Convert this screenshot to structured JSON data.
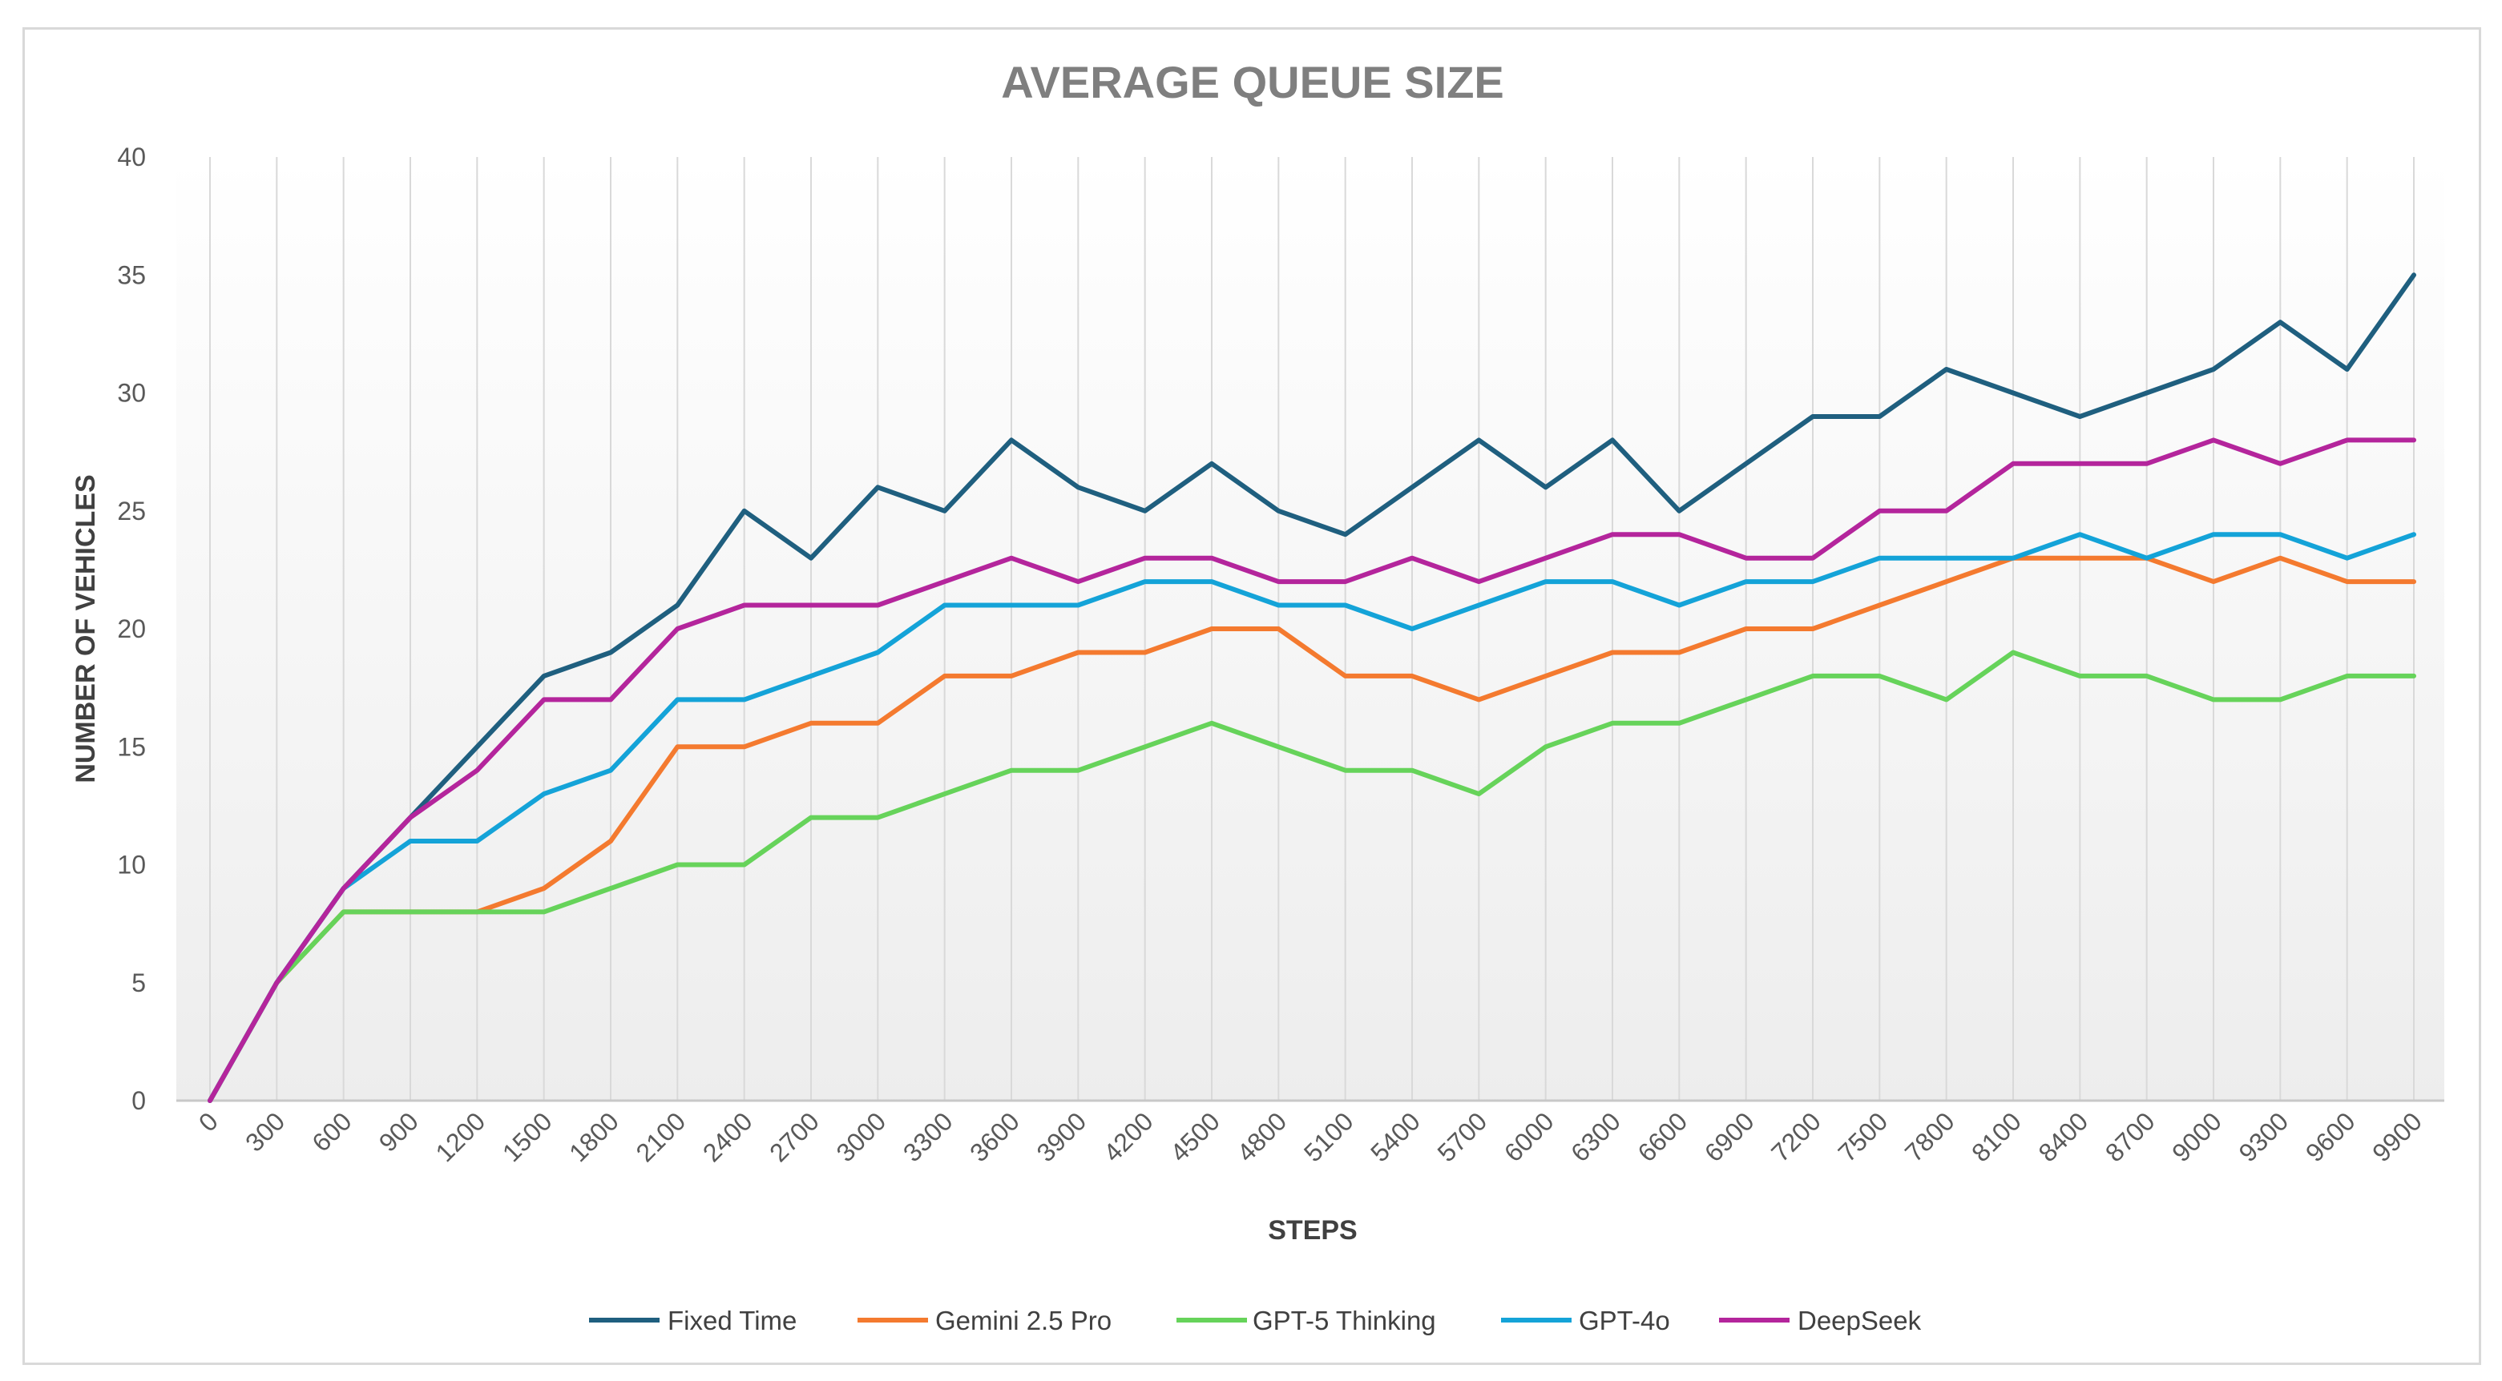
{
  "chart_data": {
    "type": "line",
    "title": "AVERAGE QUEUE SIZE",
    "xlabel": "STEPS",
    "ylabel": "NUMBER OF VEHICLES",
    "ylim": [
      0,
      40
    ],
    "yticks": [
      0,
      5,
      10,
      15,
      20,
      25,
      30,
      35,
      40
    ],
    "grid": "vertical",
    "legend": "bottom",
    "categories": [
      "0",
      "300",
      "600",
      "900",
      "1200",
      "1500",
      "1800",
      "2100",
      "2400",
      "2700",
      "3000",
      "3300",
      "3600",
      "3900",
      "4200",
      "4500",
      "4800",
      "5100",
      "5400",
      "5700",
      "6000",
      "6300",
      "6600",
      "6900",
      "7200",
      "7500",
      "7800",
      "8100",
      "8400",
      "8700",
      "9000",
      "9300",
      "9600",
      "9900"
    ],
    "series": [
      {
        "name": "Fixed Time",
        "color": "#1f5f7f",
        "values": [
          0,
          5,
          9,
          12,
          15,
          18,
          19,
          21,
          25,
          23,
          26,
          25,
          28,
          26,
          25,
          27,
          25,
          24,
          26,
          28,
          26,
          28,
          25,
          27,
          29,
          29,
          31,
          30,
          29,
          30,
          31,
          33,
          31,
          35
        ]
      },
      {
        "name": "Gemini 2.5 Pro",
        "color": "#f47a2f",
        "values": [
          0,
          5,
          8,
          8,
          8,
          9,
          11,
          15,
          15,
          16,
          16,
          18,
          18,
          19,
          19,
          20,
          20,
          18,
          18,
          17,
          18,
          19,
          19,
          20,
          20,
          21,
          22,
          23,
          23,
          23,
          22,
          23,
          22,
          22
        ]
      },
      {
        "name": "GPT-5 Thinking",
        "color": "#66d35a",
        "values": [
          0,
          5,
          8,
          8,
          8,
          8,
          9,
          10,
          10,
          12,
          12,
          13,
          14,
          14,
          15,
          16,
          15,
          14,
          14,
          13,
          15,
          16,
          16,
          17,
          18,
          18,
          17,
          19,
          18,
          18,
          17,
          17,
          18,
          18
        ]
      },
      {
        "name": "GPT-4o",
        "color": "#14a3d8",
        "values": [
          0,
          5,
          9,
          11,
          11,
          13,
          14,
          17,
          17,
          18,
          19,
          21,
          21,
          21,
          22,
          22,
          21,
          21,
          20,
          21,
          22,
          22,
          21,
          22,
          22,
          23,
          23,
          23,
          24,
          23,
          24,
          24,
          23,
          24
        ]
      },
      {
        "name": "DeepSeek",
        "color": "#b4259c",
        "values": [
          0,
          5,
          9,
          12,
          14,
          17,
          17,
          20,
          21,
          21,
          21,
          22,
          23,
          22,
          23,
          23,
          22,
          22,
          23,
          22,
          23,
          24,
          24,
          23,
          23,
          25,
          25,
          27,
          27,
          27,
          28,
          27,
          28,
          28
        ]
      }
    ]
  }
}
